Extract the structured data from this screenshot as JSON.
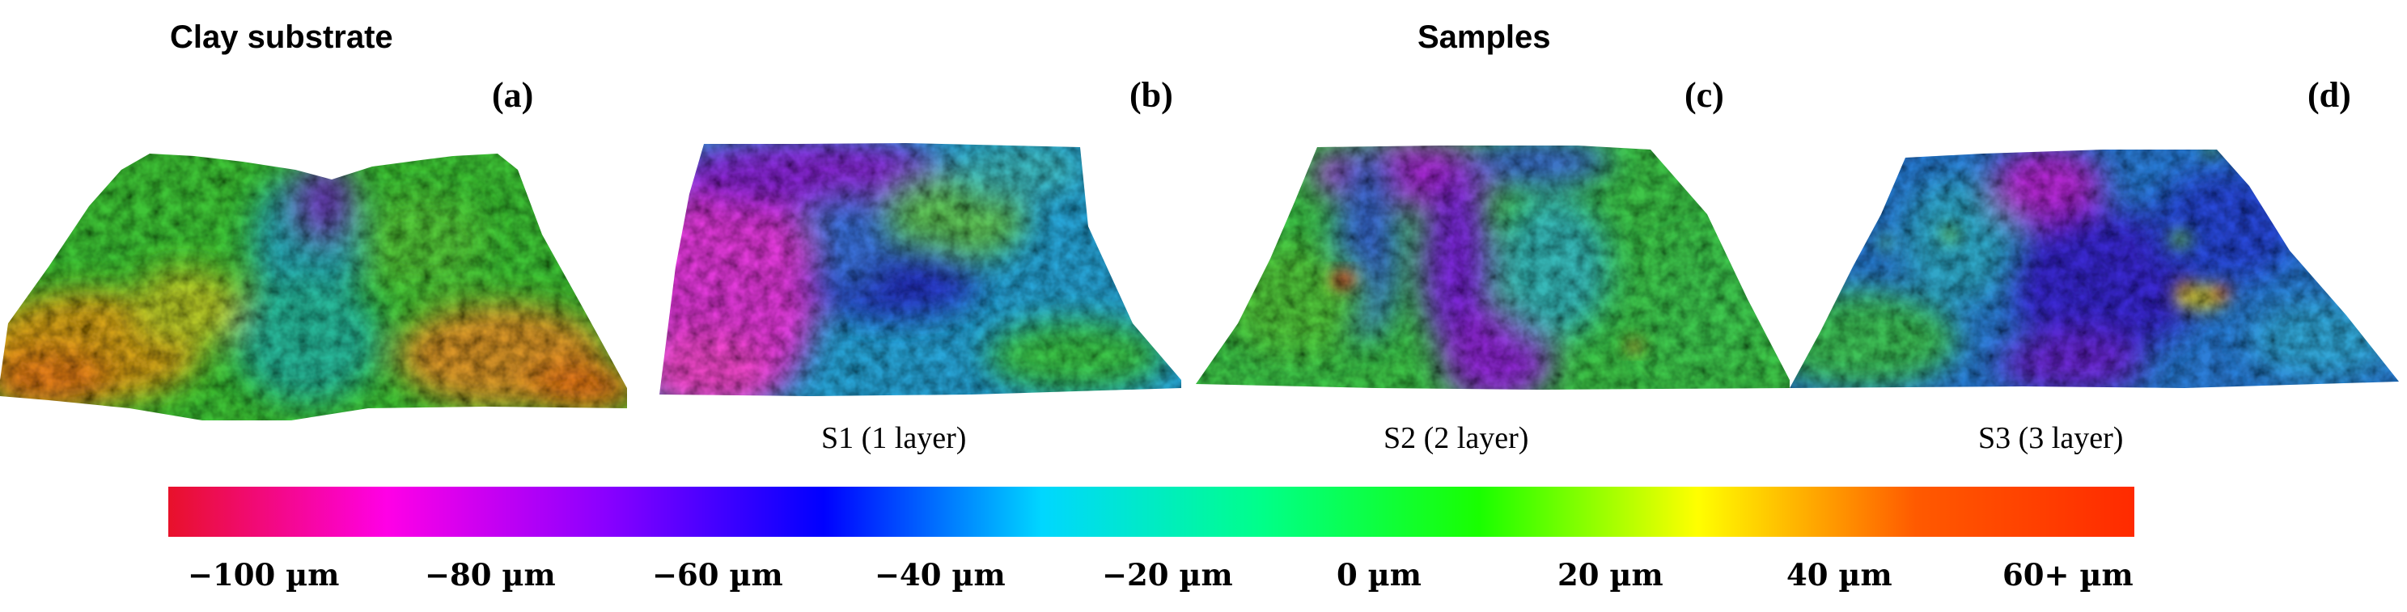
{
  "headers": {
    "clay_substrate": "Clay substrate",
    "samples": "Samples"
  },
  "panels": [
    {
      "label": "(a)",
      "caption": ""
    },
    {
      "label": "(b)",
      "caption": "S1 (1 layer)"
    },
    {
      "label": "(c)",
      "caption": "S2 (2 layer)"
    },
    {
      "label": "(d)",
      "caption": "S3 (3 layer)"
    }
  ],
  "colorbar": {
    "ticks": [
      "−100 µm",
      "−80 µm",
      "−60 µm",
      "−40 µm",
      "−20 µm",
      "0 µm",
      "20 µm",
      "40 µm",
      "60+ µm"
    ],
    "gradient_colors": [
      "#e8112a",
      "#ff00e6",
      "#8a00ff",
      "#0000ff",
      "#00d7ff",
      "#00ff8a",
      "#19ff00",
      "#ffff00",
      "#ff5a00",
      "#ff2a00"
    ]
  }
}
